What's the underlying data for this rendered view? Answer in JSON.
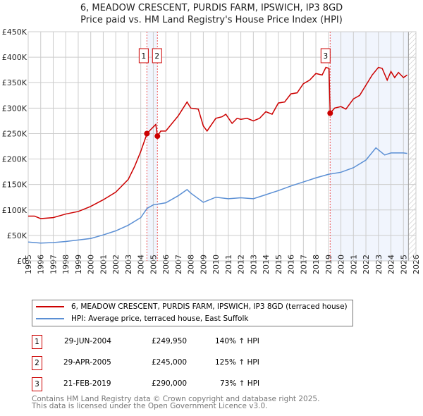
{
  "title_line1": "6, MEADOW CRESCENT, PURDIS FARM, IPSWICH, IP3 8GD",
  "title_line2": "Price paid vs. HM Land Registry's House Price Index (HPI)",
  "chart_data": {
    "type": "line",
    "ylim": [
      0,
      450000
    ],
    "xlim": [
      1995,
      2026
    ],
    "yticks": [
      {
        "v": 0,
        "label": "£0"
      },
      {
        "v": 50000,
        "label": "£50K"
      },
      {
        "v": 100000,
        "label": "£100K"
      },
      {
        "v": 150000,
        "label": "£150K"
      },
      {
        "v": 200000,
        "label": "£200K"
      },
      {
        "v": 250000,
        "label": "£250K"
      },
      {
        "v": 300000,
        "label": "£300K"
      },
      {
        "v": 350000,
        "label": "£350K"
      },
      {
        "v": 400000,
        "label": "£400K"
      },
      {
        "v": 450000,
        "label": "£450K"
      }
    ],
    "xticks": [
      "1995",
      "1996",
      "1997",
      "1998",
      "1999",
      "2000",
      "2001",
      "2002",
      "2003",
      "2004",
      "2005",
      "2006",
      "2007",
      "2008",
      "2009",
      "2010",
      "2011",
      "2012",
      "2013",
      "2014",
      "2015",
      "2016",
      "2017",
      "2018",
      "2019",
      "2020",
      "2021",
      "2022",
      "2023",
      "2024",
      "2025",
      "2026"
    ],
    "series": [
      {
        "name": "6, MEADOW CRESCENT, PURDIS FARM, IPSWICH, IP3 8GD (terraced house)",
        "color": "#cc0000",
        "x": [
          1995,
          1995.5,
          1996,
          1997,
          1998,
          1999,
          2000,
          2001,
          2002,
          2003,
          2003.5,
          2004,
          2004.5,
          2004.8,
          2005.2,
          2005.33,
          2005.6,
          2006,
          2006.5,
          2007,
          2007.7,
          2008,
          2008.6,
          2009,
          2009.3,
          2010,
          2010.5,
          2010.8,
          2011.3,
          2011.7,
          2012,
          2012.5,
          2013,
          2013.5,
          2014,
          2014.5,
          2015,
          2015.5,
          2016,
          2016.5,
          2017,
          2017.5,
          2018,
          2018.5,
          2018.8,
          2019.05,
          2019.14,
          2019.5,
          2020,
          2020.4,
          2021,
          2021.5,
          2022,
          2022.5,
          2023,
          2023.3,
          2023.7,
          2024,
          2024.3,
          2024.6,
          2025,
          2025.3
        ],
        "y": [
          88000,
          88000,
          83000,
          85000,
          92000,
          97000,
          107000,
          120000,
          135000,
          160000,
          185000,
          215000,
          250000,
          258000,
          268000,
          245000,
          255000,
          255000,
          270000,
          285000,
          312000,
          300000,
          298000,
          265000,
          255000,
          280000,
          283000,
          288000,
          270000,
          280000,
          278000,
          280000,
          275000,
          280000,
          293000,
          288000,
          310000,
          312000,
          328000,
          330000,
          348000,
          355000,
          368000,
          365000,
          380000,
          378000,
          290000,
          300000,
          303000,
          298000,
          318000,
          325000,
          345000,
          365000,
          380000,
          378000,
          355000,
          372000,
          360000,
          370000,
          360000,
          365000
        ]
      },
      {
        "name": "HPI: Average price, terraced house, East Suffolk",
        "color": "#5b8fd4",
        "x": [
          1995,
          1996,
          1997,
          1998,
          1999,
          2000,
          2001,
          2002,
          2003,
          2004,
          2004.5,
          2005,
          2006,
          2007,
          2007.7,
          2008,
          2009,
          2010,
          2011,
          2012,
          2013,
          2014,
          2015,
          2016,
          2017,
          2018,
          2019,
          2020,
          2021,
          2022,
          2022.8,
          2023.5,
          2024,
          2025,
          2025.3
        ],
        "y": [
          37000,
          35000,
          36000,
          38000,
          41000,
          44000,
          51000,
          59000,
          70000,
          85000,
          103000,
          110000,
          114000,
          128000,
          140000,
          133000,
          115000,
          125000,
          122000,
          124000,
          122000,
          130000,
          138000,
          147000,
          155000,
          163000,
          170000,
          174000,
          183000,
          198000,
          222000,
          208000,
          212000,
          212000,
          211000
        ]
      }
    ],
    "sales": [
      {
        "id": "1",
        "x": 2004.49,
        "y": 249950
      },
      {
        "id": "2",
        "x": 2005.33,
        "y": 245000
      },
      {
        "id": "3",
        "x": 2019.14,
        "y": 290000
      }
    ],
    "shaded": [
      [
        2004.49,
        2005.33
      ],
      [
        2019.14,
        2025.4
      ]
    ],
    "hatch_from": 2025.4
  },
  "legend": [
    "6, MEADOW CRESCENT, PURDIS FARM, IPSWICH, IP3 8GD (terraced house)",
    "HPI: Average price, terraced house, East Suffolk"
  ],
  "transactions": [
    {
      "id": "1",
      "date": "29-JUN-2004",
      "price": "£249,950",
      "hpi": "140% ↑ HPI"
    },
    {
      "id": "2",
      "date": "29-APR-2005",
      "price": "£245,000",
      "hpi": "125% ↑ HPI"
    },
    {
      "id": "3",
      "date": "21-FEB-2019",
      "price": "£290,000",
      "hpi": "73% ↑ HPI"
    }
  ],
  "footer1": "Contains HM Land Registry data © Crown copyright and database right 2025.",
  "footer2": "This data is licensed under the Open Government Licence v3.0."
}
